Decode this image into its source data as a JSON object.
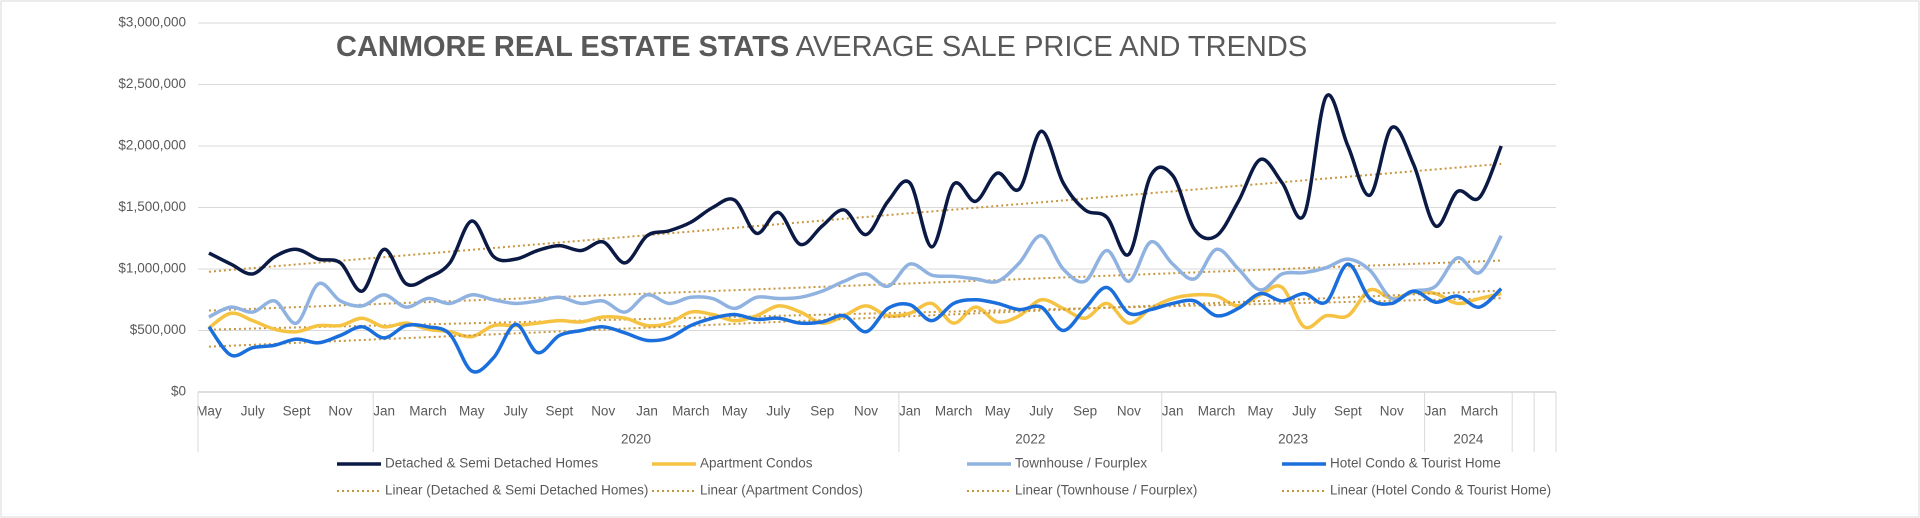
{
  "chart_data": {
    "type": "line",
    "title": "CANMORE REAL ESTATE STATS",
    "subtitle": "AVERAGE SALE PRICE AND TRENDS",
    "categories": [
      "May",
      null,
      "July",
      null,
      "Sept",
      null,
      "Nov",
      null,
      "Jan",
      null,
      "March",
      null,
      "May",
      null,
      "July",
      null,
      "Sept",
      null,
      "Nov",
      null,
      "Jan",
      null,
      "March",
      null,
      "May",
      null,
      "July",
      null,
      "Sep",
      null,
      "Nov",
      null,
      "Jan",
      null,
      "March",
      null,
      "May",
      null,
      "July",
      null,
      "Sep",
      null,
      "Nov",
      null,
      "Jan",
      null,
      "March",
      null,
      "May",
      null,
      "July",
      null,
      "Sept",
      null,
      "Nov",
      null,
      "Jan",
      null,
      "March",
      null
    ],
    "x_groups": [
      {
        "label": null,
        "size": 8
      },
      {
        "label": "2020",
        "size": 24
      },
      {
        "label": "2022",
        "size": 12
      },
      {
        "label": "2023",
        "size": 12
      },
      {
        "label": "2024",
        "size": 4
      }
    ],
    "series": [
      {
        "name": "Detached & Semi Detached Homes",
        "color": "#0b1a45",
        "trendline": {
          "name": "Linear (Detached & Semi Detached Homes)",
          "color": "#c8963e"
        },
        "values": [
          1130000,
          1040000,
          960000,
          1100000,
          1160000,
          1080000,
          1050000,
          820000,
          1160000,
          880000,
          930000,
          1050000,
          1390000,
          1100000,
          1080000,
          1150000,
          1190000,
          1150000,
          1220000,
          1050000,
          1270000,
          1310000,
          1380000,
          1500000,
          1560000,
          1290000,
          1460000,
          1200000,
          1350000,
          1480000,
          1280000,
          1550000,
          1700000,
          1180000,
          1690000,
          1550000,
          1780000,
          1650000,
          2120000,
          1700000,
          1480000,
          1420000,
          1120000,
          1760000,
          1760000,
          1320000,
          1270000,
          1550000,
          1890000,
          1700000,
          1440000,
          2400000,
          2000000,
          1600000,
          2150000,
          1850000,
          1350000,
          1630000,
          1580000,
          2000000
        ]
      },
      {
        "name": "Apartment Condos",
        "color": "#f5c242",
        "trendline": {
          "name": "Linear (Apartment Condos)",
          "color": "#c8963e"
        },
        "values": [
          520000,
          640000,
          580000,
          510000,
          490000,
          540000,
          540000,
          600000,
          530000,
          560000,
          510000,
          490000,
          450000,
          540000,
          540000,
          560000,
          580000,
          570000,
          610000,
          600000,
          540000,
          560000,
          650000,
          630000,
          580000,
          620000,
          700000,
          650000,
          560000,
          620000,
          700000,
          620000,
          640000,
          720000,
          560000,
          690000,
          570000,
          620000,
          750000,
          680000,
          600000,
          720000,
          560000,
          680000,
          760000,
          790000,
          780000,
          700000,
          790000,
          850000,
          530000,
          620000,
          620000,
          830000,
          760000,
          810000,
          800000,
          720000,
          760000,
          800000
        ]
      },
      {
        "name": "Townhouse / Fourplex",
        "color": "#8fb2e0",
        "trendline": {
          "name": "Linear (Townhouse / Fourplex)",
          "color": "#c8963e"
        },
        "values": [
          610000,
          690000,
          650000,
          740000,
          560000,
          880000,
          740000,
          700000,
          790000,
          690000,
          760000,
          720000,
          790000,
          750000,
          720000,
          740000,
          770000,
          720000,
          740000,
          650000,
          790000,
          720000,
          770000,
          760000,
          680000,
          770000,
          760000,
          770000,
          820000,
          900000,
          960000,
          860000,
          1040000,
          950000,
          940000,
          920000,
          900000,
          1050000,
          1270000,
          1000000,
          900000,
          1150000,
          900000,
          1220000,
          1040000,
          920000,
          1160000,
          1000000,
          830000,
          960000,
          970000,
          1010000,
          1080000,
          990000,
          760000,
          820000,
          860000,
          1090000,
          970000,
          1270000
        ]
      },
      {
        "name": "Hotel Condo & Tourist Home",
        "color": "#1a6fdc",
        "trendline": {
          "name": "Linear (Hotel Condo & Tourist Home)",
          "color": "#c8963e"
        },
        "values": [
          530000,
          300000,
          360000,
          380000,
          430000,
          400000,
          460000,
          530000,
          440000,
          540000,
          530000,
          470000,
          170000,
          280000,
          550000,
          320000,
          460000,
          500000,
          530000,
          480000,
          420000,
          440000,
          540000,
          600000,
          630000,
          590000,
          600000,
          560000,
          570000,
          620000,
          490000,
          680000,
          710000,
          580000,
          720000,
          750000,
          720000,
          670000,
          690000,
          500000,
          680000,
          850000,
          640000,
          670000,
          720000,
          740000,
          620000,
          680000,
          800000,
          740000,
          800000,
          730000,
          1040000,
          760000,
          720000,
          820000,
          730000,
          780000,
          690000,
          840000
        ]
      }
    ],
    "ylim": [
      0,
      3000000
    ],
    "yticks": [
      {
        "value": 0,
        "label": "$0"
      },
      {
        "value": 500000,
        "label": "$500,000"
      },
      {
        "value": 1000000,
        "label": "$1,000,000"
      },
      {
        "value": 1500000,
        "label": "$1,500,000"
      },
      {
        "value": 2000000,
        "label": "$2,000,000"
      },
      {
        "value": 2500000,
        "label": "$2,500,000"
      },
      {
        "value": 3000000,
        "label": "$3,000,000"
      }
    ],
    "grid": true
  }
}
